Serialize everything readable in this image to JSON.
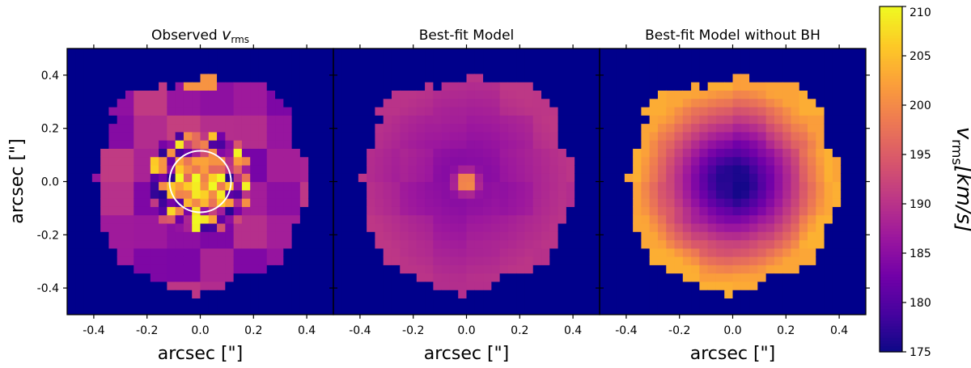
{
  "chart_data": {
    "type": "heatmap",
    "panels": [
      {
        "id": "observed",
        "title_main": "Observed ",
        "title_var": "v",
        "title_sub": "rms",
        "annotation": "white circle of radius 0.1 arcsec centred at (0, 0)"
      },
      {
        "id": "model",
        "title": "Best-fit Model"
      },
      {
        "id": "nobh",
        "title": "Best-fit Model without BH"
      }
    ],
    "xlabel": "arcsec [\"]",
    "ylabel": "arcsec [\"]",
    "xlim": [
      -0.5,
      0.5
    ],
    "ylim": [
      -0.5,
      0.5
    ],
    "xticks": [
      -0.4,
      -0.2,
      0.0,
      0.2,
      0.4
    ],
    "yticks": [
      -0.4,
      -0.2,
      0.0,
      0.2,
      0.4
    ],
    "xtick_labels": [
      "-0.4",
      "-0.2",
      "0.0",
      "0.2",
      "0.4"
    ],
    "ytick_labels": [
      "-0.4",
      "-0.2",
      "0.0",
      "0.2",
      "0.4"
    ],
    "colorbar": {
      "label_var": "v",
      "label_sub": "rms",
      "label_unit": "[km/s]",
      "vmin": 175,
      "vmax": 210,
      "ticks": [
        175,
        180,
        185,
        190,
        195,
        200,
        205,
        210
      ],
      "tick_labels": [
        "175",
        "180",
        "185",
        "190",
        "195",
        "200",
        "205",
        "210"
      ],
      "colormap": "plasma",
      "colormap_stops": [
        "#0d0887",
        "#46039f",
        "#7201a8",
        "#9c179e",
        "#bd3786",
        "#d8576b",
        "#ed7953",
        "#fb9f3a",
        "#fdca26",
        "#f0f921"
      ]
    },
    "masked_color": "#00008b"
  }
}
